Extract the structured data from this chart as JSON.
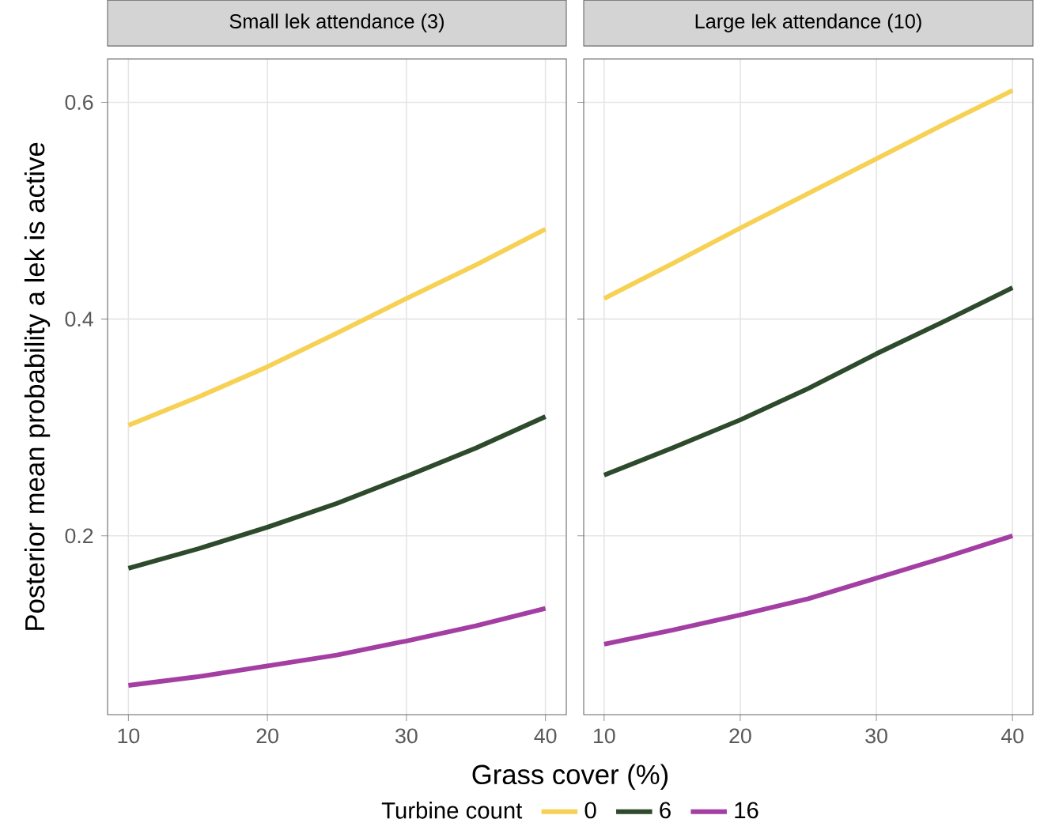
{
  "chart_data": [
    {
      "type": "line",
      "title": "Small lek attendance (3)",
      "xlabel": "Grass cover (%)",
      "ylabel": "Posterior mean probability a lek is active",
      "legend_title": "Turbine count",
      "legend": "bottom",
      "grid": true,
      "line_style": "solid",
      "marker": "none",
      "x": [
        10,
        15,
        20,
        25,
        30,
        35,
        40
      ],
      "xlim": [
        8.5,
        41.5
      ],
      "xticks": [
        10,
        20,
        30,
        40
      ],
      "ylim": [
        0.035,
        0.64
      ],
      "yticks": [
        0.2,
        0.4,
        0.6
      ],
      "series": [
        {
          "name": "0",
          "color": "#f6d154",
          "values": [
            0.302,
            0.328,
            0.356,
            0.387,
            0.419,
            0.45,
            0.483
          ]
        },
        {
          "name": "6",
          "color": "#2e4a2c",
          "values": [
            0.17,
            0.188,
            0.208,
            0.23,
            0.255,
            0.281,
            0.31
          ]
        },
        {
          "name": "16",
          "color": "#a33fa3",
          "values": [
            0.062,
            0.07,
            0.08,
            0.09,
            0.103,
            0.117,
            0.133
          ]
        }
      ]
    },
    {
      "type": "line",
      "title": "Large lek attendance (10)",
      "grid": true,
      "line_style": "solid",
      "marker": "none",
      "tick_labels": "x",
      "x": [
        10,
        15,
        20,
        25,
        30,
        35,
        40
      ],
      "xlim": [
        8.5,
        41.5
      ],
      "xticks": [
        10,
        20,
        30,
        40
      ],
      "ylim": [
        0.035,
        0.64
      ],
      "yticks": [
        0.2,
        0.4,
        0.6
      ],
      "series": [
        {
          "color": "#f6d154",
          "values": [
            0.419,
            0.451,
            0.484,
            0.516,
            0.548,
            0.58,
            0.611
          ]
        },
        {
          "color": "#2e4a2c",
          "values": [
            0.256,
            0.281,
            0.307,
            0.336,
            0.368,
            0.398,
            0.429
          ]
        },
        {
          "color": "#a33fa3",
          "values": [
            0.1,
            0.113,
            0.127,
            0.142,
            0.161,
            0.18,
            0.2
          ]
        }
      ]
    }
  ]
}
